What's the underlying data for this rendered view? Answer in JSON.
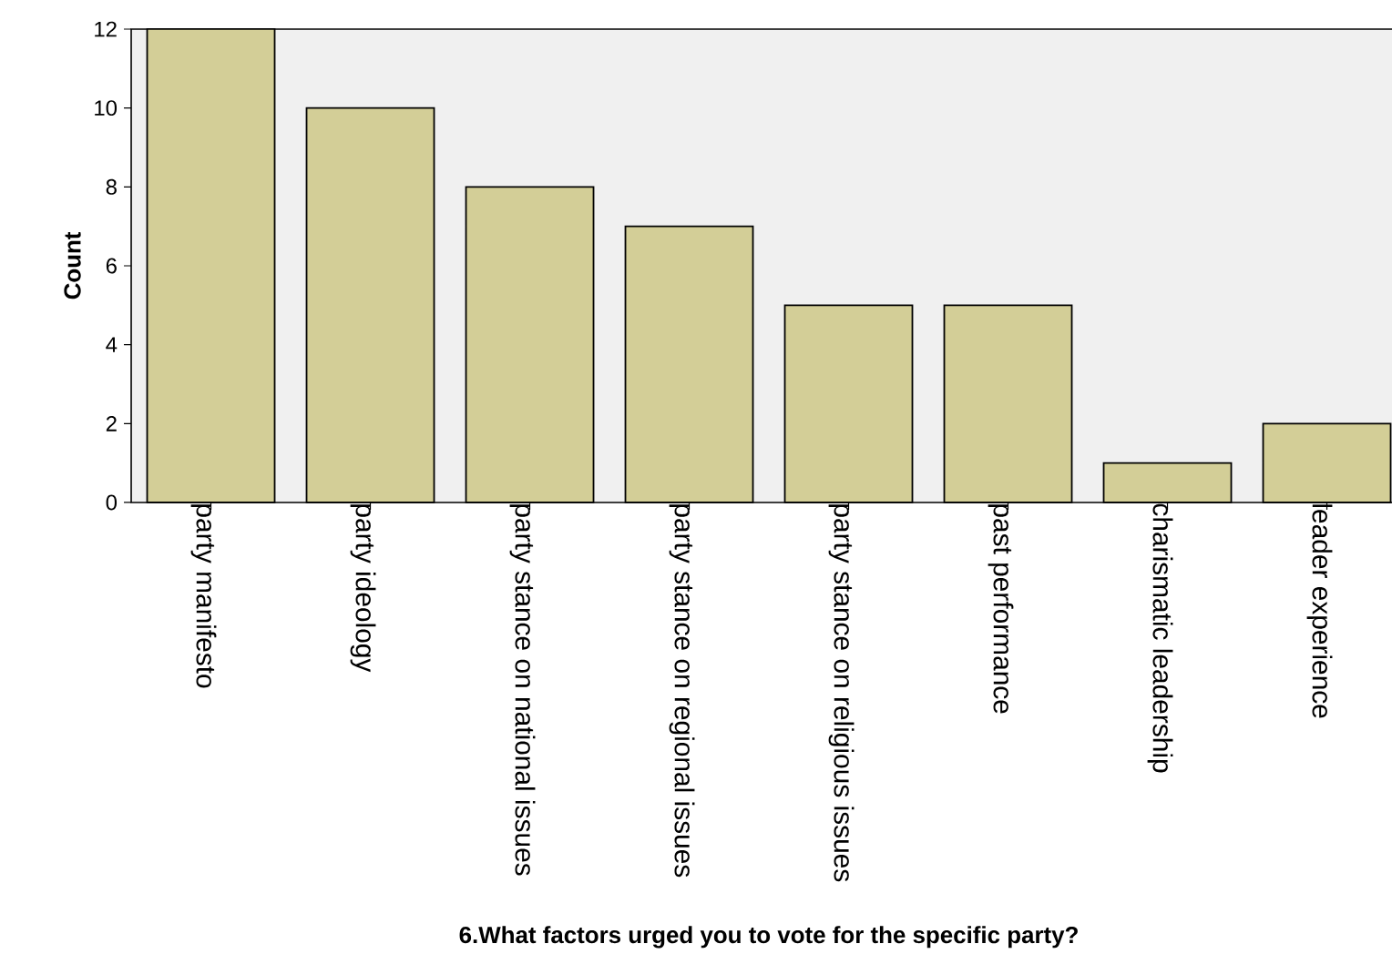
{
  "chart_data": {
    "type": "bar",
    "xlabel": "6.What factors urged you to vote for the specific party?",
    "ylabel": "Count",
    "categories": [
      "party manifesto",
      "party ideology",
      "party stance on national issues",
      "party stance on regional issues",
      "party stance on religious issues",
      "past performance",
      "charismatic leadership",
      "leader experience"
    ],
    "values": [
      12,
      10,
      8,
      7,
      5,
      5,
      1,
      2
    ],
    "color": "#d3ce97",
    "ylim": [
      0,
      12
    ],
    "yticks": [
      0,
      2,
      4,
      6,
      8,
      10,
      12
    ],
    "grid": false
  }
}
